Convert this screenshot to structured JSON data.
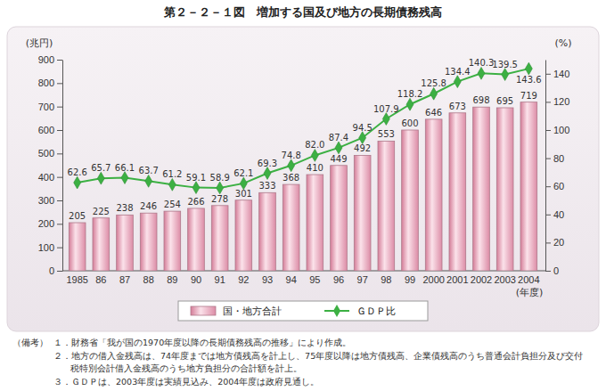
{
  "chart_data": {
    "type": "bar",
    "title": "第２－２－１図　増加する国及び地方の長期債務残高",
    "ylabel": "(兆円)",
    "y2label": "(%)",
    "xlabel": "(年度)",
    "categories": [
      "1985",
      "86",
      "87",
      "88",
      "89",
      "90",
      "91",
      "92",
      "93",
      "94",
      "95",
      "96",
      "97",
      "98",
      "99",
      "2000",
      "2001",
      "2002",
      "2003",
      "2004"
    ],
    "series": [
      {
        "name": "国・地方合計",
        "type": "bar",
        "color": "#e8a0b8",
        "values": [
          205,
          225,
          238,
          246,
          254,
          266,
          278,
          301,
          333,
          368,
          410,
          449,
          492,
          553,
          600,
          646,
          673,
          698,
          695,
          719
        ]
      },
      {
        "name": "ＧＤＰ比",
        "type": "line",
        "axis": "y2",
        "color": "#3cb043",
        "marker": "diamond",
        "values": [
          62.6,
          65.7,
          66.1,
          63.7,
          61.2,
          59.1,
          58.9,
          62.1,
          69.3,
          74.8,
          82.0,
          87.4,
          94.5,
          107.9,
          118.2,
          125.8,
          134.4,
          140.3,
          139.5,
          143.6
        ],
        "value_labels": [
          "62.6",
          "65.7",
          "66.1",
          "63.7",
          "61.2",
          "59.1",
          "58.9",
          "62.1",
          "69.3",
          "74.8",
          "82.0",
          "87.4",
          "94.5",
          "107.9",
          "118.2",
          "125.8",
          "134.4",
          "140.3",
          "139.5",
          "143.6"
        ]
      }
    ],
    "ylim": [
      0,
      900
    ],
    "yticks": [
      0,
      100,
      200,
      300,
      400,
      500,
      600,
      700,
      800,
      900
    ],
    "y2lim": [
      0,
      150
    ],
    "y2ticks": [
      0,
      20,
      40,
      60,
      80,
      100,
      120,
      140
    ],
    "grid": false,
    "legend": "bottom",
    "data_labels": true,
    "notes_label": "（備考）",
    "notes": [
      "１．財務省「我が国の1970年度以降の長期債務残高の推移」により作成。",
      "２．地方の借入金残高は、74年度までは地方債残高を計上し、75年度以降は地方債残高、企業債残高のうち普通会計負担分及び交付",
      "税特別会計借入金残高のうち地方負担分の合計額を計上。",
      "３．ＧＤＰは、2003年度は実績見込み、2004年度は政府見通し。"
    ]
  }
}
